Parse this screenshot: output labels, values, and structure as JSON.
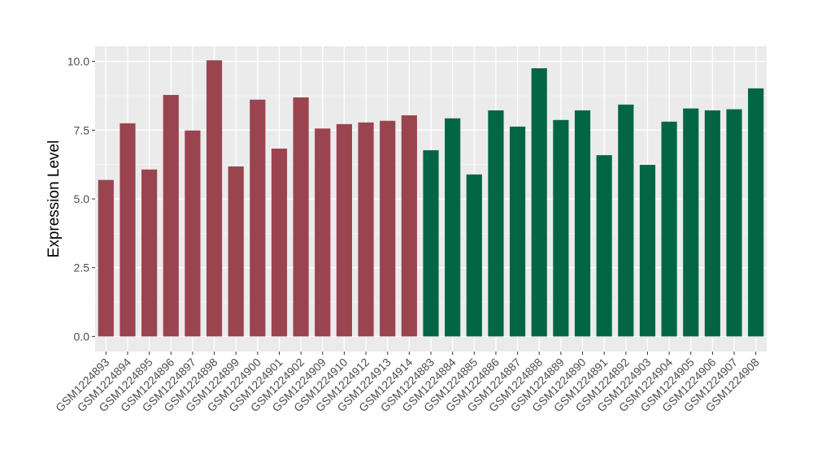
{
  "chart_data": {
    "type": "bar",
    "title": "",
    "xlabel": "",
    "ylabel": "Expression Level",
    "ylim": [
      -0.55,
      10.55
    ],
    "yticks": [
      0.0,
      2.5,
      5.0,
      7.5,
      10.0
    ],
    "ytick_labels": [
      "0.0",
      "2.5",
      "5.0",
      "7.5",
      "10.0"
    ],
    "grid": true,
    "legend": "none",
    "panel_background": "#ebebeb",
    "categories": [
      "GSM1224893",
      "GSM1224894",
      "GSM1224895",
      "GSM1224896",
      "GSM1224897",
      "GSM1224898",
      "GSM1224899",
      "GSM1224900",
      "GSM1224901",
      "GSM1224902",
      "GSM1224909",
      "GSM1224910",
      "GSM1224912",
      "GSM1224913",
      "GSM1224914",
      "GSM1224883",
      "GSM1224884",
      "GSM1224885",
      "GSM1224886",
      "GSM1224887",
      "GSM1224888",
      "GSM1224889",
      "GSM1224890",
      "GSM1224891",
      "GSM1224892",
      "GSM1224903",
      "GSM1224904",
      "GSM1224905",
      "GSM1224906",
      "GSM1224907",
      "GSM1224908"
    ],
    "values": [
      5.69,
      7.75,
      6.07,
      8.78,
      7.49,
      10.04,
      6.18,
      8.61,
      6.83,
      8.69,
      7.56,
      7.72,
      7.78,
      7.84,
      8.04,
      6.77,
      7.93,
      5.89,
      8.22,
      7.63,
      9.75,
      7.87,
      8.22,
      6.59,
      8.43,
      6.24,
      7.81,
      8.29,
      8.22,
      8.26,
      9.02
    ],
    "groups": [
      "A",
      "A",
      "A",
      "A",
      "A",
      "A",
      "A",
      "A",
      "A",
      "A",
      "A",
      "A",
      "A",
      "A",
      "A",
      "B",
      "B",
      "B",
      "B",
      "B",
      "B",
      "B",
      "B",
      "B",
      "B",
      "B",
      "B",
      "B",
      "B",
      "B",
      "B"
    ],
    "group_colors": {
      "A": "#9a4450",
      "B": "#026645"
    }
  }
}
